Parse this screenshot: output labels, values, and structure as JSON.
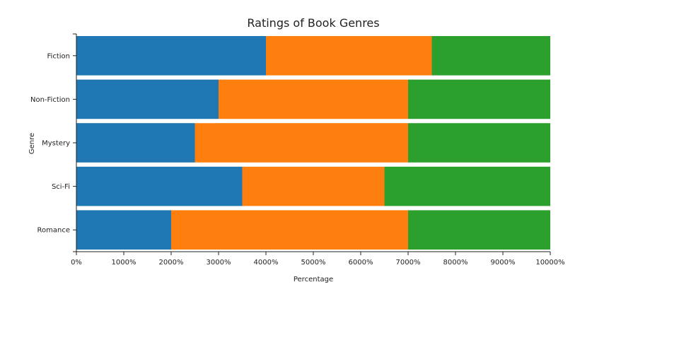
{
  "chart_data": {
    "type": "bar",
    "orientation": "horizontal",
    "stacked": true,
    "title": "Ratings of Book Genres",
    "xlabel": "Percentage",
    "ylabel": "Genre",
    "categories": [
      "Fiction",
      "Non-Fiction",
      "Mystery",
      "Sci-Fi",
      "Romance"
    ],
    "series": [
      {
        "values": [
          4000,
          3000,
          2500,
          3500,
          2000
        ],
        "color": "#1f77b4"
      },
      {
        "values": [
          3500,
          4000,
          4500,
          3000,
          5000
        ],
        "color": "#ff7f0e"
      },
      {
        "values": [
          2500,
          3000,
          3000,
          3500,
          3000
        ],
        "color": "#2ca02c"
      }
    ],
    "xlim": [
      0,
      10000
    ],
    "xticks": [
      0,
      1000,
      2000,
      3000,
      4000,
      5000,
      6000,
      7000,
      8000,
      9000,
      10000
    ],
    "xtick_labels": [
      "0%",
      "1000%",
      "2000%",
      "3000%",
      "4000%",
      "5000%",
      "6000%",
      "7000%",
      "8000%",
      "9000%",
      "10000%"
    ],
    "grid": false,
    "legend": "none"
  }
}
